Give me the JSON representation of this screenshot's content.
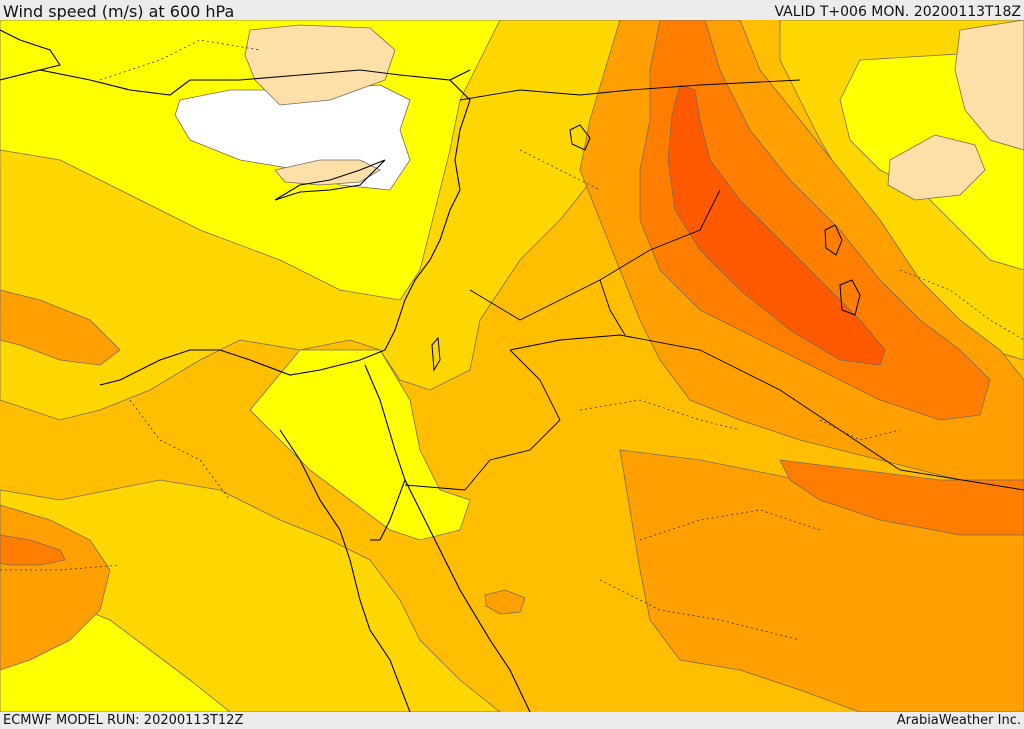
{
  "header": {
    "title": "Wind speed (m/s) at 600 hPa",
    "valid": "VALID T+006 MON. 20200113T18Z"
  },
  "footer": {
    "model_run": "ECMWF MODEL RUN: 20200113T12Z",
    "credit": "ArabiaWeather Inc."
  },
  "map": {
    "variable": "wind speed",
    "level": "600 hPa",
    "colors": {
      "calm_white": "#ffffff",
      "light_tan": "#fde0a8",
      "yellow": "#ffff00",
      "gold": "#ffd700",
      "amber": "#ffbe00",
      "orange": "#ffa000",
      "dark_orange": "#ff7e00",
      "red_orange": "#ff5a00"
    }
  }
}
